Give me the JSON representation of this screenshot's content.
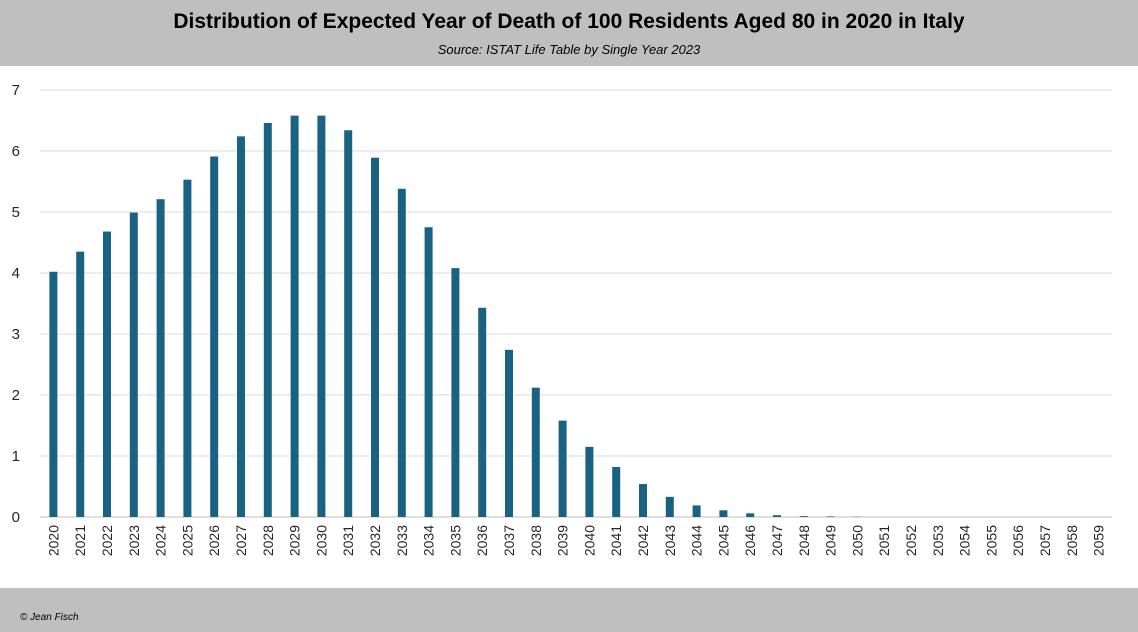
{
  "header": {
    "title": "Distribution of Expected Year of Death of 100 Residents Aged 80 in 2020 in Italy",
    "subtitle": "Source: ISTAT Life Table by Single Year 2023"
  },
  "footer": {
    "credit": "© Jean Fisch"
  },
  "colors": {
    "bar": "#1a6282",
    "grid": "#d9d9d9",
    "band": "#bfbfbf"
  },
  "chart_data": {
    "type": "bar",
    "title": "Distribution of Expected Year of Death of 100 Residents Aged 80 in 2020 in Italy",
    "subtitle": "Source: ISTAT Life Table by Single Year 2023",
    "xlabel": "",
    "ylabel": "",
    "ylim": [
      0,
      7
    ],
    "yticks": [
      0,
      1,
      2,
      3,
      4,
      5,
      6,
      7
    ],
    "grid": true,
    "legend": "none",
    "categories": [
      "2020",
      "2021",
      "2022",
      "2023",
      "2024",
      "2025",
      "2026",
      "2027",
      "2028",
      "2029",
      "2030",
      "2031",
      "2032",
      "2033",
      "2034",
      "2035",
      "2036",
      "2037",
      "2038",
      "2039",
      "2040",
      "2041",
      "2042",
      "2043",
      "2044",
      "2045",
      "2046",
      "2047",
      "2048",
      "2049",
      "2050",
      "2051",
      "2052",
      "2053",
      "2054",
      "2055",
      "2056",
      "2057",
      "2058",
      "2059"
    ],
    "values": [
      4.02,
      4.35,
      4.68,
      4.99,
      5.21,
      5.53,
      5.91,
      6.24,
      6.46,
      6.58,
      6.58,
      6.34,
      5.89,
      5.38,
      4.75,
      4.08,
      3.43,
      2.74,
      2.12,
      1.58,
      1.15,
      0.82,
      0.54,
      0.33,
      0.19,
      0.11,
      0.06,
      0.03,
      0.015,
      0.01,
      0.005,
      0,
      0,
      0,
      0,
      0,
      0,
      0,
      0,
      0
    ]
  }
}
